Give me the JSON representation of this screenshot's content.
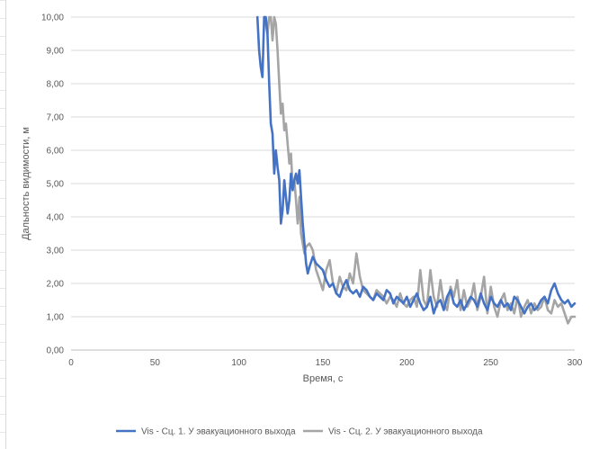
{
  "chart_data": {
    "type": "line",
    "title": "",
    "xlabel": "Время, с",
    "ylabel": "Дальность видимости, м",
    "xlim": [
      0,
      300
    ],
    "ylim": [
      0,
      10
    ],
    "x_ticks": [
      "0",
      "50",
      "100",
      "150",
      "200",
      "250",
      "300"
    ],
    "x_tick_values": [
      0,
      50,
      100,
      150,
      200,
      250,
      300
    ],
    "y_ticks": [
      "0,00",
      "1,00",
      "2,00",
      "3,00",
      "4,00",
      "5,00",
      "6,00",
      "7,00",
      "8,00",
      "9,00",
      "10,00"
    ],
    "y_tick_values": [
      0,
      1,
      2,
      3,
      4,
      5,
      6,
      7,
      8,
      9,
      10
    ],
    "grid": "horizontal",
    "legend_position": "bottom",
    "series": [
      {
        "name": "Vis - Сц. 1. У эвакуационного выхода",
        "color": "#4472c4",
        "points": [
          [
            111,
            10
          ],
          [
            112,
            9
          ],
          [
            113,
            8.5
          ],
          [
            114,
            8.2
          ],
          [
            115,
            10
          ],
          [
            116,
            10
          ],
          [
            117,
            9.5
          ],
          [
            118,
            8
          ],
          [
            119,
            6.8
          ],
          [
            120,
            6.5
          ],
          [
            121,
            5.3
          ],
          [
            122,
            6
          ],
          [
            123,
            5.5
          ],
          [
            124,
            5.1
          ],
          [
            125,
            3.8
          ],
          [
            126,
            4.2
          ],
          [
            127,
            5.1
          ],
          [
            128,
            4.6
          ],
          [
            129,
            4.1
          ],
          [
            130,
            4.5
          ],
          [
            131,
            5.3
          ],
          [
            132,
            4.8
          ],
          [
            133,
            5.1
          ],
          [
            134,
            5.3
          ],
          [
            135,
            5.0
          ],
          [
            136,
            5.4
          ],
          [
            137,
            4.6
          ],
          [
            138,
            3.8
          ],
          [
            139,
            3.2
          ],
          [
            140,
            2.6
          ],
          [
            141,
            2.3
          ],
          [
            142,
            2.5
          ],
          [
            144,
            2.8
          ],
          [
            146,
            2.6
          ],
          [
            148,
            2.5
          ],
          [
            150,
            2.4
          ],
          [
            152,
            2.1
          ],
          [
            154,
            1.9
          ],
          [
            156,
            2.0
          ],
          [
            158,
            1.7
          ],
          [
            160,
            1.6
          ],
          [
            162,
            1.9
          ],
          [
            164,
            2.1
          ],
          [
            166,
            1.8
          ],
          [
            168,
            1.7
          ],
          [
            170,
            1.8
          ],
          [
            172,
            1.6
          ],
          [
            174,
            1.9
          ],
          [
            176,
            1.8
          ],
          [
            178,
            1.6
          ],
          [
            180,
            1.5
          ],
          [
            182,
            1.7
          ],
          [
            184,
            1.6
          ],
          [
            186,
            1.5
          ],
          [
            188,
            1.8
          ],
          [
            190,
            1.7
          ],
          [
            192,
            1.4
          ],
          [
            194,
            1.6
          ],
          [
            196,
            1.5
          ],
          [
            198,
            1.4
          ],
          [
            200,
            1.6
          ],
          [
            202,
            1.3
          ],
          [
            204,
            1.5
          ],
          [
            206,
            1.7
          ],
          [
            208,
            1.4
          ],
          [
            210,
            1.2
          ],
          [
            212,
            1.3
          ],
          [
            214,
            1.6
          ],
          [
            216,
            1.1
          ],
          [
            218,
            1.4
          ],
          [
            220,
            1.5
          ],
          [
            222,
            1.2
          ],
          [
            224,
            1.6
          ],
          [
            226,
            1.8
          ],
          [
            228,
            1.4
          ],
          [
            230,
            1.3
          ],
          [
            232,
            1.5
          ],
          [
            234,
            1.2
          ],
          [
            236,
            1.4
          ],
          [
            238,
            1.6
          ],
          [
            240,
            1.5
          ],
          [
            242,
            1.3
          ],
          [
            244,
            1.7
          ],
          [
            246,
            1.4
          ],
          [
            248,
            1.2
          ],
          [
            250,
            1.6
          ],
          [
            252,
            1.4
          ],
          [
            254,
            1.3
          ],
          [
            256,
            1.5
          ],
          [
            258,
            1.3
          ],
          [
            260,
            1.4
          ],
          [
            262,
            1.2
          ],
          [
            264,
            1.6
          ],
          [
            266,
            1.5
          ],
          [
            268,
            1.3
          ],
          [
            270,
            1.1
          ],
          [
            272,
            1.3
          ],
          [
            274,
            1.4
          ],
          [
            276,
            1.2
          ],
          [
            278,
            1.3
          ],
          [
            280,
            1.5
          ],
          [
            282,
            1.6
          ],
          [
            284,
            1.4
          ],
          [
            286,
            1.8
          ],
          [
            288,
            2.0
          ],
          [
            290,
            1.7
          ],
          [
            292,
            1.5
          ],
          [
            294,
            1.4
          ],
          [
            296,
            1.5
          ],
          [
            298,
            1.3
          ],
          [
            300,
            1.4
          ]
        ]
      },
      {
        "name": "Vis - Сц. 2. У эвакуационного выхода",
        "color": "#a5a5a5",
        "points": [
          [
            115,
            10
          ],
          [
            116,
            9.8
          ],
          [
            117,
            9.5
          ],
          [
            118,
            10
          ],
          [
            119,
            10
          ],
          [
            120,
            9.3
          ],
          [
            121,
            10
          ],
          [
            122,
            9.8
          ],
          [
            123,
            9.0
          ],
          [
            124,
            8.0
          ],
          [
            125,
            7.1
          ],
          [
            126,
            7.4
          ],
          [
            127,
            6.6
          ],
          [
            128,
            6.8
          ],
          [
            129,
            6.2
          ],
          [
            130,
            5.6
          ],
          [
            131,
            5.9
          ],
          [
            132,
            4.9
          ],
          [
            133,
            5.1
          ],
          [
            134,
            4.5
          ],
          [
            135,
            3.8
          ],
          [
            136,
            4.6
          ],
          [
            137,
            3.5
          ],
          [
            138,
            3.2
          ],
          [
            139,
            2.9
          ],
          [
            140,
            3.1
          ],
          [
            142,
            3.2
          ],
          [
            144,
            3.0
          ],
          [
            146,
            2.4
          ],
          [
            148,
            2.1
          ],
          [
            150,
            1.8
          ],
          [
            152,
            2.4
          ],
          [
            154,
            2.7
          ],
          [
            156,
            2.0
          ],
          [
            158,
            1.7
          ],
          [
            160,
            2.2
          ],
          [
            162,
            1.9
          ],
          [
            164,
            1.8
          ],
          [
            166,
            2.3
          ],
          [
            168,
            2.0
          ],
          [
            170,
            2.9
          ],
          [
            172,
            2.2
          ],
          [
            174,
            1.8
          ],
          [
            176,
            1.7
          ],
          [
            178,
            1.6
          ],
          [
            180,
            1.5
          ],
          [
            182,
            1.8
          ],
          [
            184,
            1.7
          ],
          [
            186,
            1.6
          ],
          [
            188,
            1.4
          ],
          [
            190,
            1.6
          ],
          [
            192,
            1.5
          ],
          [
            194,
            1.3
          ],
          [
            196,
            1.7
          ],
          [
            198,
            1.4
          ],
          [
            200,
            1.3
          ],
          [
            202,
            1.5
          ],
          [
            204,
            1.6
          ],
          [
            206,
            1.3
          ],
          [
            208,
            2.4
          ],
          [
            210,
            1.5
          ],
          [
            212,
            1.3
          ],
          [
            214,
            2.4
          ],
          [
            216,
            1.6
          ],
          [
            218,
            1.3
          ],
          [
            220,
            2.1
          ],
          [
            222,
            1.4
          ],
          [
            224,
            1.2
          ],
          [
            226,
            1.9
          ],
          [
            228,
            1.6
          ],
          [
            230,
            2.1
          ],
          [
            232,
            1.2
          ],
          [
            234,
            1.8
          ],
          [
            236,
            1.3
          ],
          [
            238,
            1.5
          ],
          [
            240,
            2.0
          ],
          [
            242,
            1.2
          ],
          [
            244,
            1.6
          ],
          [
            246,
            2.2
          ],
          [
            248,
            1.1
          ],
          [
            250,
            1.9
          ],
          [
            252,
            1.3
          ],
          [
            254,
            1.0
          ],
          [
            256,
            1.5
          ],
          [
            258,
            1.7
          ],
          [
            260,
            1.2
          ],
          [
            262,
            1.4
          ],
          [
            264,
            1.1
          ],
          [
            266,
            1.6
          ],
          [
            268,
            1.0
          ],
          [
            270,
            1.3
          ],
          [
            272,
            1.5
          ],
          [
            274,
            1.1
          ],
          [
            276,
            1.4
          ],
          [
            278,
            1.2
          ],
          [
            280,
            1.3
          ],
          [
            282,
            1.6
          ],
          [
            284,
            1.2
          ],
          [
            286,
            1.1
          ],
          [
            288,
            1.5
          ],
          [
            290,
            1.3
          ],
          [
            292,
            1.4
          ],
          [
            294,
            1.1
          ],
          [
            296,
            0.8
          ],
          [
            298,
            1.0
          ],
          [
            300,
            1.0
          ]
        ]
      }
    ]
  }
}
